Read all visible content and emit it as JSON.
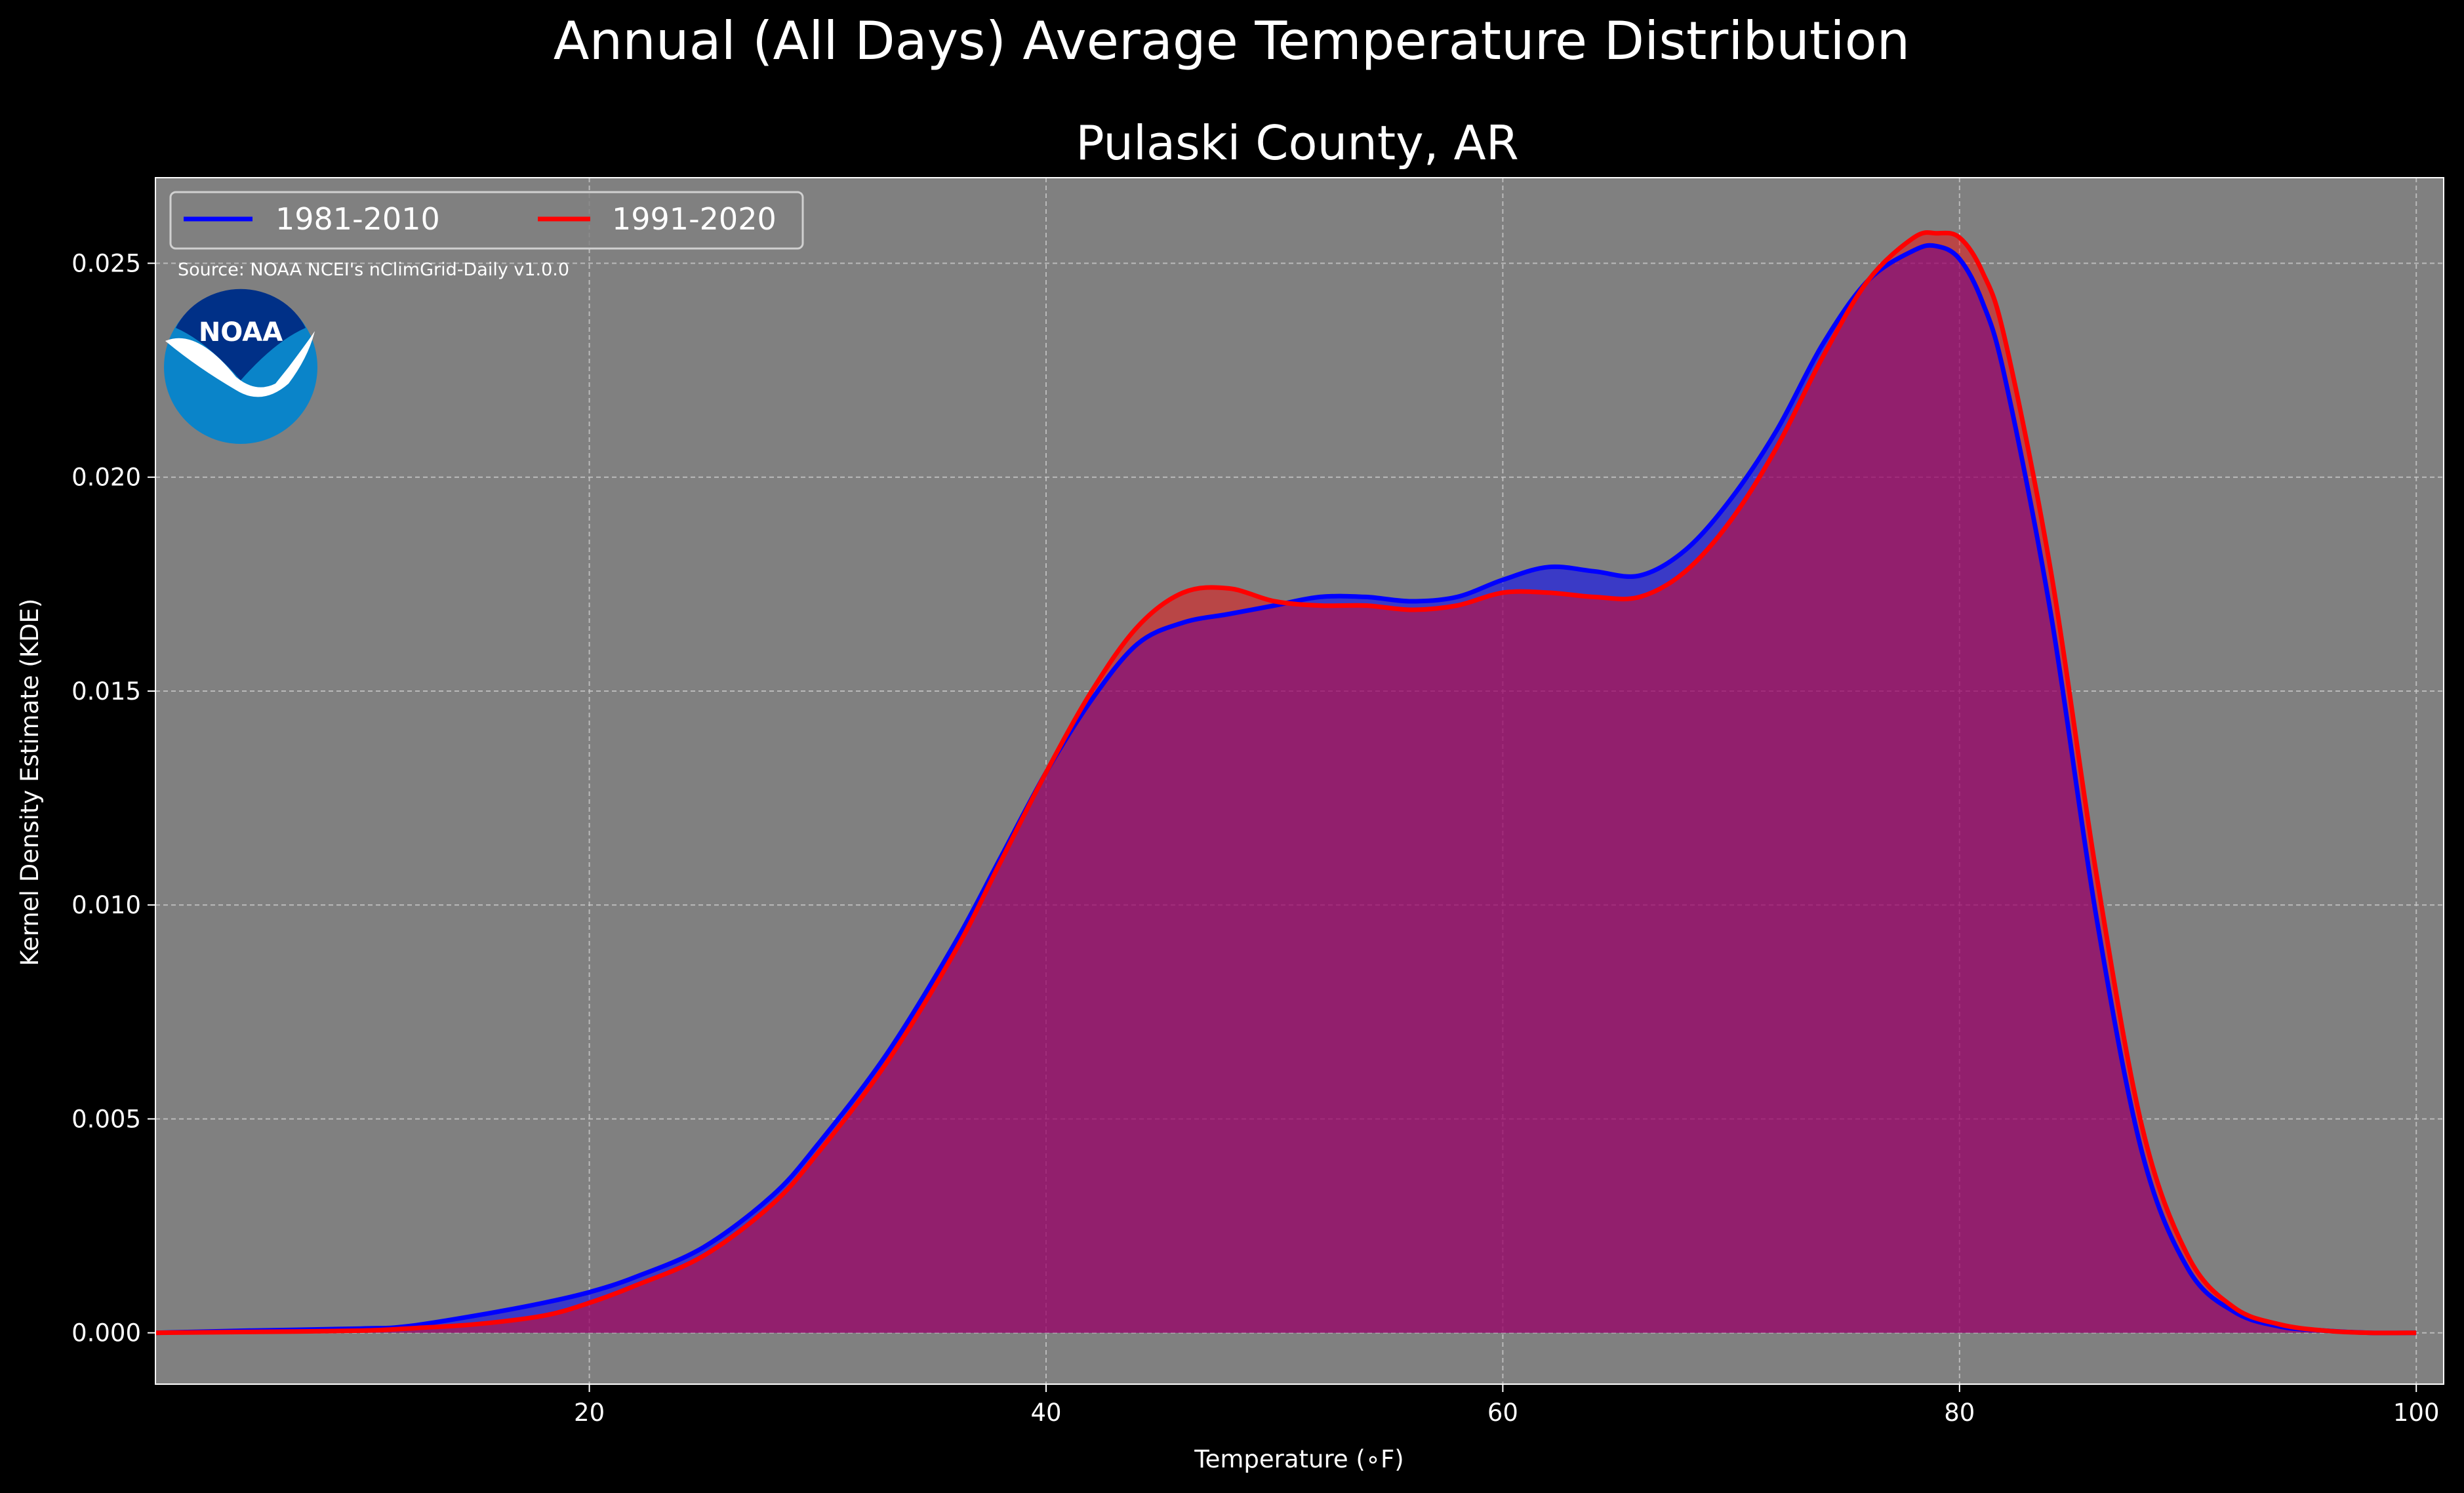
{
  "chart_data": {
    "type": "area",
    "suptitle": "Annual (All Days) Average Temperature Distribution",
    "title": "Pulaski County, AR",
    "xlabel": "Temperature ($^\\circ$F)",
    "xlabel_display": "Temperature (∘F)",
    "ylabel": "Kernel Density Estimate (KDE)",
    "source": "Source: NOAA NCEI's nClimGrid-Daily v1.0.0",
    "logo_text": "NOAA",
    "xlim": [
      1.0,
      101.2
    ],
    "ylim": [
      -0.0012,
      0.027
    ],
    "xticks": [
      20,
      40,
      60,
      80,
      100
    ],
    "xtick_labels": [
      "20",
      "40",
      "60",
      "80",
      "100"
    ],
    "yticks": [
      0.0,
      0.005,
      0.01,
      0.015,
      0.02,
      0.025
    ],
    "ytick_labels": [
      "0.000",
      "0.005",
      "0.010",
      "0.015",
      "0.020",
      "0.025"
    ],
    "grid": true,
    "legend_position": "top-left",
    "colors": {
      "figure_bg": "#000000",
      "axes_bg": "#808080",
      "series_1981_2010": "#0000ff",
      "series_1991_2020": "#ff0000",
      "overlap_fill": "#9e1f5b"
    },
    "series": [
      {
        "name": "1981-2010",
        "color": "#0000ff",
        "x": [
          1,
          5,
          10,
          12,
          15,
          18,
          20,
          22,
          25,
          28,
          30,
          33,
          36,
          38,
          40,
          42,
          44,
          46,
          48,
          50,
          52,
          54,
          56,
          58,
          60,
          62,
          64,
          66,
          68,
          70,
          72,
          74,
          76,
          78,
          79,
          80,
          81,
          82,
          84,
          86,
          88,
          90,
          92,
          94,
          96,
          98,
          100
        ],
        "y": [
          0.0,
          5e-05,
          0.0001,
          0.00015,
          0.0004,
          0.0007,
          0.00095,
          0.0013,
          0.002,
          0.0032,
          0.0044,
          0.0065,
          0.0091,
          0.0111,
          0.0131,
          0.0148,
          0.0161,
          0.0166,
          0.0168,
          0.017,
          0.0172,
          0.0172,
          0.0171,
          0.0172,
          0.0176,
          0.0179,
          0.0178,
          0.0177,
          0.0183,
          0.0195,
          0.0211,
          0.0231,
          0.0246,
          0.0253,
          0.0254,
          0.0251,
          0.0241,
          0.0223,
          0.0168,
          0.0097,
          0.0042,
          0.0015,
          0.0005,
          0.00015,
          5e-05,
          0.0,
          0.0
        ]
      },
      {
        "name": "1991-2020",
        "color": "#ff0000",
        "x": [
          1,
          5,
          10,
          12,
          15,
          18,
          20,
          22,
          25,
          28,
          30,
          33,
          36,
          38,
          40,
          42,
          44,
          46,
          48,
          50,
          52,
          54,
          56,
          58,
          60,
          62,
          64,
          66,
          68,
          70,
          72,
          74,
          76,
          78,
          79,
          80,
          81,
          82,
          84,
          86,
          88,
          90,
          92,
          94,
          96,
          98,
          100
        ],
        "y": [
          0.0,
          2e-05,
          5e-05,
          0.0001,
          0.0002,
          0.0004,
          0.0007,
          0.0011,
          0.0018,
          0.003,
          0.0042,
          0.0063,
          0.0089,
          0.011,
          0.0131,
          0.015,
          0.0165,
          0.0173,
          0.0174,
          0.0171,
          0.017,
          0.017,
          0.0169,
          0.017,
          0.0173,
          0.0173,
          0.0172,
          0.0172,
          0.0178,
          0.019,
          0.0207,
          0.0228,
          0.0246,
          0.0256,
          0.0257,
          0.0256,
          0.0248,
          0.0232,
          0.0178,
          0.0107,
          0.0048,
          0.0018,
          0.0006,
          0.0002,
          5e-05,
          0.0,
          0.0
        ]
      }
    ]
  }
}
